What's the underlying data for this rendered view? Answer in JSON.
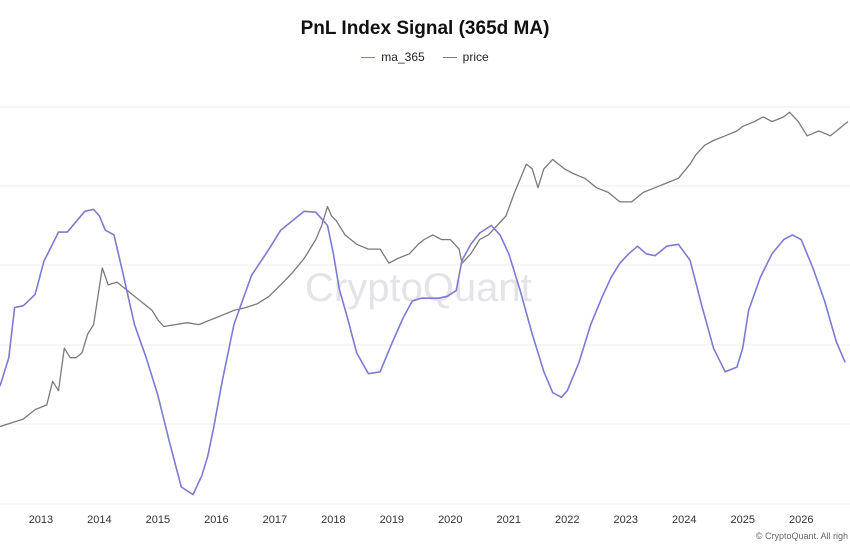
{
  "chart_data": {
    "type": "line",
    "title": "PnL Index Signal (365d MA)",
    "legend_position": "top-center",
    "grid": "horizontal",
    "x_ticks": [
      "2013",
      "2014",
      "2015",
      "2016",
      "2017",
      "2018",
      "2019",
      "2020",
      "2021",
      "2022",
      "2023",
      "2024",
      "2025",
      "2026"
    ],
    "xlim": [
      2012.3,
      2026.8
    ],
    "series": [
      {
        "name": "ma_365",
        "color": "#7b7bd6",
        "x": [
          2012.3,
          2012.45,
          2012.55,
          2012.7,
          2012.9,
          2013.05,
          2013.3,
          2013.45,
          2013.6,
          2013.75,
          2013.9,
          2014.0,
          2014.1,
          2014.25,
          2014.4,
          2014.6,
          2014.8,
          2015.0,
          2015.2,
          2015.4,
          2015.6,
          2015.75,
          2015.85,
          2015.95,
          2016.1,
          2016.3,
          2016.6,
          2016.9,
          2017.1,
          2017.3,
          2017.5,
          2017.7,
          2017.9,
          2018.0,
          2018.1,
          2018.25,
          2018.4,
          2018.6,
          2018.8,
          2019.0,
          2019.2,
          2019.35,
          2019.5,
          2019.65,
          2019.8,
          2019.95,
          2020.1,
          2020.2,
          2020.35,
          2020.5,
          2020.7,
          2020.85,
          2021.0,
          2021.2,
          2021.4,
          2021.6,
          2021.75,
          2021.9,
          2022.0,
          2022.2,
          2022.4,
          2022.6,
          2022.75,
          2022.9,
          2023.05,
          2023.2,
          2023.35,
          2023.5,
          2023.7,
          2023.9,
          2024.1,
          2024.3,
          2024.5,
          2024.7,
          2024.9,
          2025.0,
          2025.1,
          2025.3,
          2025.5,
          2025.7,
          2025.85,
          2026.0,
          2026.2,
          2026.4,
          2026.6,
          2026.75
        ],
        "y": [
          -0.35,
          -0.05,
          0.48,
          0.5,
          0.62,
          0.97,
          1.28,
          1.28,
          1.39,
          1.5,
          1.52,
          1.45,
          1.3,
          1.25,
          0.85,
          0.3,
          -0.05,
          -0.45,
          -0.95,
          -1.42,
          -1.5,
          -1.3,
          -1.1,
          -0.8,
          -0.3,
          0.3,
          0.82,
          1.1,
          1.3,
          1.4,
          1.5,
          1.49,
          1.35,
          1.05,
          0.68,
          0.35,
          0.0,
          -0.22,
          -0.2,
          0.1,
          0.38,
          0.55,
          0.58,
          0.58,
          0.58,
          0.6,
          0.66,
          0.98,
          1.15,
          1.27,
          1.35,
          1.25,
          1.05,
          0.65,
          0.2,
          -0.2,
          -0.42,
          -0.47,
          -0.4,
          -0.1,
          0.3,
          0.6,
          0.8,
          0.95,
          1.05,
          1.13,
          1.05,
          1.03,
          1.13,
          1.15,
          0.98,
          0.5,
          0.05,
          -0.2,
          -0.15,
          0.05,
          0.45,
          0.8,
          1.05,
          1.2,
          1.25,
          1.2,
          0.9,
          0.55,
          0.12,
          -0.1
        ]
      },
      {
        "name": "price",
        "color": "#7a7a7a",
        "x": [
          2012.3,
          2012.5,
          2012.7,
          2012.9,
          2013.1,
          2013.2,
          2013.3,
          2013.4,
          2013.5,
          2013.6,
          2013.7,
          2013.8,
          2013.9,
          2013.95,
          2014.05,
          2014.15,
          2014.3,
          2014.5,
          2014.7,
          2014.9,
          2015.0,
          2015.1,
          2015.3,
          2015.5,
          2015.7,
          2015.9,
          2016.1,
          2016.3,
          2016.5,
          2016.7,
          2016.9,
          2017.1,
          2017.3,
          2017.5,
          2017.7,
          2017.8,
          2017.9,
          2017.97,
          2018.05,
          2018.2,
          2018.4,
          2018.6,
          2018.8,
          2018.95,
          2019.1,
          2019.3,
          2019.45,
          2019.55,
          2019.7,
          2019.85,
          2020.0,
          2020.15,
          2020.2,
          2020.35,
          2020.5,
          2020.65,
          2020.8,
          2020.95,
          2021.1,
          2021.2,
          2021.3,
          2021.4,
          2021.5,
          2021.6,
          2021.75,
          2021.85,
          2021.95,
          2022.1,
          2022.3,
          2022.5,
          2022.7,
          2022.9,
          2023.1,
          2023.3,
          2023.5,
          2023.7,
          2023.9,
          2024.1,
          2024.2,
          2024.35,
          2024.5,
          2024.7,
          2024.9,
          2025.0,
          2025.2,
          2025.35,
          2025.5,
          2025.7,
          2025.8,
          2025.95,
          2026.1,
          2026.3,
          2026.5,
          2026.7,
          2026.8
        ],
        "y": [
          -0.78,
          -0.74,
          -0.7,
          -0.6,
          -0.55,
          -0.3,
          -0.4,
          0.05,
          -0.05,
          -0.05,
          0.0,
          0.2,
          0.3,
          0.5,
          0.9,
          0.72,
          0.75,
          0.65,
          0.55,
          0.45,
          0.35,
          0.28,
          0.3,
          0.32,
          0.3,
          0.35,
          0.4,
          0.45,
          0.48,
          0.52,
          0.6,
          0.72,
          0.85,
          1.0,
          1.2,
          1.35,
          1.55,
          1.45,
          1.4,
          1.25,
          1.15,
          1.1,
          1.1,
          0.95,
          1.0,
          1.05,
          1.15,
          1.2,
          1.25,
          1.2,
          1.2,
          1.1,
          0.95,
          1.05,
          1.2,
          1.25,
          1.35,
          1.45,
          1.7,
          1.85,
          2.0,
          1.95,
          1.75,
          1.95,
          2.05,
          2.0,
          1.95,
          1.9,
          1.85,
          1.75,
          1.7,
          1.6,
          1.6,
          1.7,
          1.75,
          1.8,
          1.85,
          2.0,
          2.1,
          2.2,
          2.25,
          2.3,
          2.35,
          2.4,
          2.45,
          2.5,
          2.45,
          2.5,
          2.55,
          2.45,
          2.3,
          2.35,
          2.3,
          2.4,
          2.45
        ]
      }
    ]
  },
  "watermark": "CryptoQuant",
  "credit": "© CryptoQuant. All righ"
}
